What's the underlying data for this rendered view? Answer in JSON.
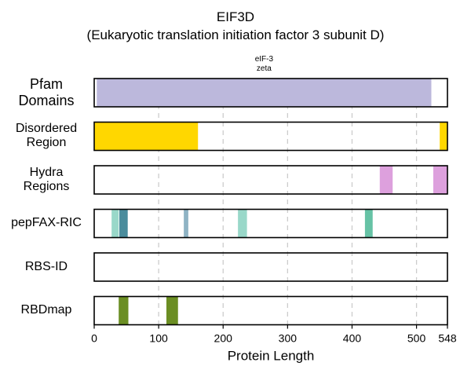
{
  "chart_data": {
    "type": "bar",
    "title": "EIF3D",
    "subtitle": "(Eukaryotic translation initiation factor 3 subunit D)",
    "xlabel": "Protein Length",
    "xlim": [
      0,
      548
    ],
    "xticks": [
      0,
      100,
      200,
      300,
      400,
      500,
      548
    ],
    "grid": true,
    "tracks": [
      {
        "name": "Pfam\nDomains",
        "segments": [
          {
            "start": 4,
            "end": 523,
            "color": "#bcb8dc",
            "label": "eIF-3\nzeta"
          }
        ]
      },
      {
        "name": "Disordered\nRegion",
        "segments": [
          {
            "start": 0,
            "end": 161,
            "color": "#ffd700"
          },
          {
            "start": 536,
            "end": 548,
            "color": "#ffd700"
          }
        ]
      },
      {
        "name": "Hydra\nRegions",
        "segments": [
          {
            "start": 443,
            "end": 463,
            "color": "#dda0dd"
          },
          {
            "start": 526,
            "end": 548,
            "color": "#dda0dd"
          }
        ]
      },
      {
        "name": "pepFAX-RIC",
        "segments": [
          {
            "start": 27,
            "end": 38,
            "color": "#99d8c9"
          },
          {
            "start": 39,
            "end": 52,
            "color": "#4a8c9c"
          },
          {
            "start": 139,
            "end": 146,
            "color": "#8fb3c4"
          },
          {
            "start": 223,
            "end": 237,
            "color": "#99d8c9"
          },
          {
            "start": 420,
            "end": 432,
            "color": "#66c2a5"
          }
        ]
      },
      {
        "name": "RBS-ID",
        "segments": []
      },
      {
        "name": "RBDmap",
        "segments": [
          {
            "start": 38,
            "end": 53,
            "color": "#6b8e23"
          },
          {
            "start": 112,
            "end": 130,
            "color": "#6b8e23"
          }
        ]
      }
    ]
  }
}
